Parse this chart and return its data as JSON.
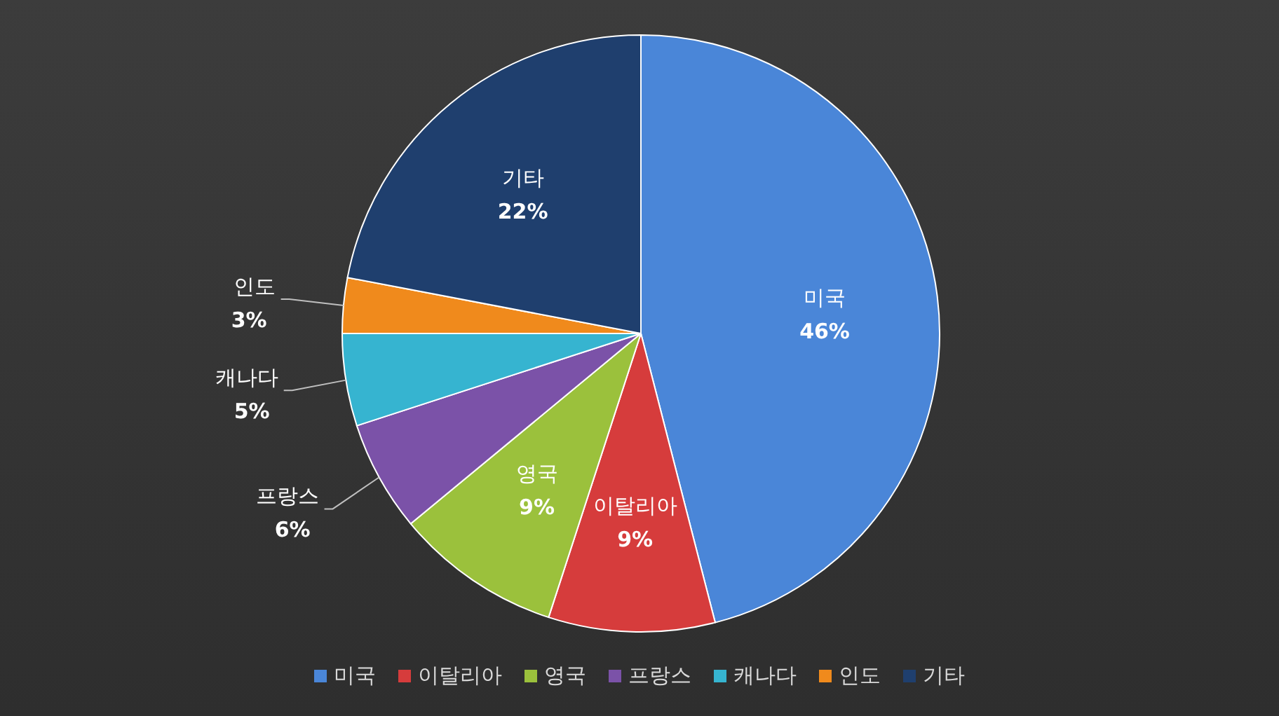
{
  "chart_data": {
    "type": "pie",
    "categories": [
      "미국",
      "이탈리아",
      "영국",
      "프랑스",
      "캐나다",
      "인도",
      "기타"
    ],
    "values": [
      46,
      9,
      9,
      6,
      5,
      3,
      22
    ],
    "value_labels": [
      "46%",
      "9%",
      "9%",
      "6%",
      "5%",
      "3%",
      "22%"
    ],
    "colors": [
      "#4a86d8",
      "#d63c3c",
      "#9bc13c",
      "#7b52a8",
      "#36b4d0",
      "#f08a1c",
      "#1f3f6e"
    ],
    "legend": "bottom"
  }
}
